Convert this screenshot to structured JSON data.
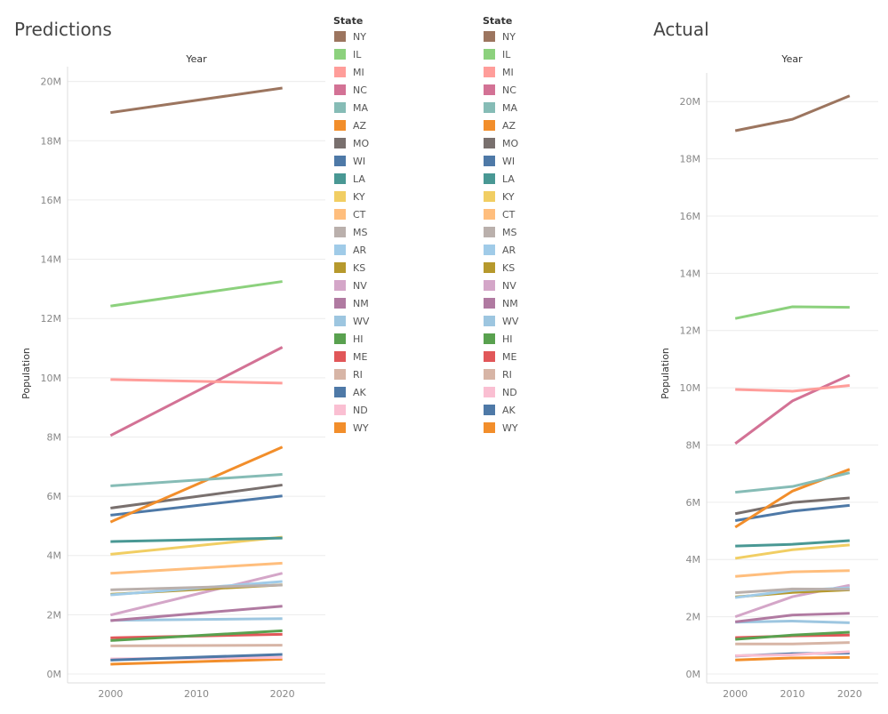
{
  "chart_data": [
    {
      "type": "line",
      "title": "Predictions",
      "column_header": "Year",
      "ylabel": "Population",
      "x": [
        2000,
        2020
      ],
      "xticks": [
        "2000",
        "2010",
        "2020"
      ],
      "yticks": [
        "0M",
        "2M",
        "4M",
        "6M",
        "8M",
        "10M",
        "12M",
        "14M",
        "16M",
        "18M",
        "20M"
      ],
      "xlim": [
        1995,
        2025
      ],
      "ylim": [
        0,
        20500000
      ],
      "grid": true,
      "series": [
        {
          "name": "NY",
          "color": "#9c755f",
          "values": [
            18950000,
            19780000
          ]
        },
        {
          "name": "IL",
          "color": "#8cd17d",
          "values": [
            12420000,
            13250000
          ]
        },
        {
          "name": "MI",
          "color": "#ff9d9a",
          "values": [
            9940000,
            9820000
          ]
        },
        {
          "name": "NC",
          "color": "#d37295",
          "values": [
            8050000,
            11030000
          ]
        },
        {
          "name": "MA",
          "color": "#86bcb6",
          "values": [
            6350000,
            6740000
          ]
        },
        {
          "name": "AZ",
          "color": "#f28e2b",
          "values": [
            5130000,
            7660000
          ]
        },
        {
          "name": "MO",
          "color": "#79706e",
          "values": [
            5600000,
            6380000
          ]
        },
        {
          "name": "WI",
          "color": "#4e79a7",
          "values": [
            5360000,
            6010000
          ]
        },
        {
          "name": "LA",
          "color": "#499894",
          "values": [
            4470000,
            4590000
          ]
        },
        {
          "name": "KY",
          "color": "#f1ce63",
          "values": [
            4040000,
            4620000
          ]
        },
        {
          "name": "CT",
          "color": "#ffbe7d",
          "values": [
            3400000,
            3740000
          ]
        },
        {
          "name": "MS",
          "color": "#bab0ac",
          "values": [
            2840000,
            3000000
          ]
        },
        {
          "name": "AR",
          "color": "#a0cbe8",
          "values": [
            2670000,
            3120000
          ]
        },
        {
          "name": "KS",
          "color": "#b6992d",
          "values": [
            2690000,
            3010000
          ]
        },
        {
          "name": "NV",
          "color": "#d4a6c8",
          "values": [
            1990000,
            3400000
          ]
        },
        {
          "name": "NM",
          "color": "#b07aa1",
          "values": [
            1800000,
            2290000
          ]
        },
        {
          "name": "WV",
          "color": "#9dc6e0",
          "values": [
            1810000,
            1870000
          ]
        },
        {
          "name": "HI",
          "color": "#59a14f",
          "values": [
            1130000,
            1460000
          ]
        },
        {
          "name": "ME",
          "color": "#e15759",
          "values": [
            1220000,
            1340000
          ]
        },
        {
          "name": "RI",
          "color": "#d7b5a6",
          "values": [
            950000,
            970000
          ]
        },
        {
          "name": "AK",
          "color": "#4e79a7",
          "values": [
            470000,
            660000
          ]
        },
        {
          "name": "ND",
          "color": "#fabfd2",
          "values": [
            510000,
            560000
          ]
        },
        {
          "name": "WY",
          "color": "#f28e2b",
          "values": [
            330000,
            500000
          ]
        }
      ],
      "legend": {
        "title": "State",
        "items": [
          {
            "label": "NY",
            "color": "#9c755f"
          },
          {
            "label": "IL",
            "color": "#8cd17d"
          },
          {
            "label": "MI",
            "color": "#ff9d9a"
          },
          {
            "label": "NC",
            "color": "#d37295"
          },
          {
            "label": "MA",
            "color": "#86bcb6"
          },
          {
            "label": "AZ",
            "color": "#f28e2b"
          },
          {
            "label": "MO",
            "color": "#79706e"
          },
          {
            "label": "WI",
            "color": "#4e79a7"
          },
          {
            "label": "LA",
            "color": "#499894"
          },
          {
            "label": "KY",
            "color": "#f1ce63"
          },
          {
            "label": "CT",
            "color": "#ffbe7d"
          },
          {
            "label": "MS",
            "color": "#bab0ac"
          },
          {
            "label": "AR",
            "color": "#a0cbe8"
          },
          {
            "label": "KS",
            "color": "#b6992d"
          },
          {
            "label": "NV",
            "color": "#d4a6c8"
          },
          {
            "label": "NM",
            "color": "#b07aa1"
          },
          {
            "label": "WV",
            "color": "#9dc6e0"
          },
          {
            "label": "HI",
            "color": "#59a14f"
          },
          {
            "label": "ME",
            "color": "#e15759"
          },
          {
            "label": "RI",
            "color": "#d7b5a6"
          },
          {
            "label": "AK",
            "color": "#4e79a7"
          },
          {
            "label": "ND",
            "color": "#fabfd2"
          },
          {
            "label": "WY",
            "color": "#f28e2b"
          }
        ]
      }
    },
    {
      "type": "line",
      "title": "Actual",
      "column_header": "Year",
      "ylabel": "Population",
      "x": [
        2000,
        2010,
        2020
      ],
      "xticks": [
        "2000",
        "2010",
        "2020"
      ],
      "yticks": [
        "0M",
        "2M",
        "4M",
        "6M",
        "8M",
        "10M",
        "12M",
        "14M",
        "16M",
        "18M",
        "20M"
      ],
      "xlim": [
        1995,
        2025
      ],
      "ylim": [
        0,
        21000000
      ],
      "grid": true,
      "series": [
        {
          "name": "NY",
          "color": "#9c755f",
          "values": [
            18980000,
            19380000,
            20200000
          ]
        },
        {
          "name": "IL",
          "color": "#8cd17d",
          "values": [
            12420000,
            12830000,
            12810000
          ]
        },
        {
          "name": "MI",
          "color": "#ff9d9a",
          "values": [
            9940000,
            9880000,
            10080000
          ]
        },
        {
          "name": "NC",
          "color": "#d37295",
          "values": [
            8050000,
            9540000,
            10440000
          ]
        },
        {
          "name": "MA",
          "color": "#86bcb6",
          "values": [
            6350000,
            6550000,
            7030000
          ]
        },
        {
          "name": "AZ",
          "color": "#f28e2b",
          "values": [
            5130000,
            6390000,
            7150000
          ]
        },
        {
          "name": "MO",
          "color": "#79706e",
          "values": [
            5600000,
            5990000,
            6150000
          ]
        },
        {
          "name": "WI",
          "color": "#4e79a7",
          "values": [
            5360000,
            5690000,
            5890000
          ]
        },
        {
          "name": "LA",
          "color": "#499894",
          "values": [
            4470000,
            4530000,
            4660000
          ]
        },
        {
          "name": "KY",
          "color": "#f1ce63",
          "values": [
            4040000,
            4340000,
            4510000
          ]
        },
        {
          "name": "CT",
          "color": "#ffbe7d",
          "values": [
            3410000,
            3570000,
            3610000
          ]
        },
        {
          "name": "MS",
          "color": "#bab0ac",
          "values": [
            2840000,
            2970000,
            2960000
          ]
        },
        {
          "name": "AR",
          "color": "#a0cbe8",
          "values": [
            2670000,
            2920000,
            3010000
          ]
        },
        {
          "name": "KS",
          "color": "#b6992d",
          "values": [
            2690000,
            2850000,
            2940000
          ]
        },
        {
          "name": "NV",
          "color": "#d4a6c8",
          "values": [
            2000000,
            2700000,
            3100000
          ]
        },
        {
          "name": "NM",
          "color": "#b07aa1",
          "values": [
            1820000,
            2060000,
            2120000
          ]
        },
        {
          "name": "WV",
          "color": "#9dc6e0",
          "values": [
            1810000,
            1850000,
            1790000
          ]
        },
        {
          "name": "HI",
          "color": "#59a14f",
          "values": [
            1210000,
            1360000,
            1460000
          ]
        },
        {
          "name": "ME",
          "color": "#e15759",
          "values": [
            1270000,
            1330000,
            1360000
          ]
        },
        {
          "name": "RI",
          "color": "#d7b5a6",
          "values": [
            1050000,
            1050000,
            1100000
          ]
        },
        {
          "name": "ND",
          "color": "#fabfd2",
          "values": [
            640000,
            670000,
            780000
          ]
        },
        {
          "name": "AK",
          "color": "#4e79a7",
          "values": [
            630000,
            710000,
            730000
          ]
        },
        {
          "name": "WY",
          "color": "#f28e2b",
          "values": [
            490000,
            560000,
            580000
          ]
        }
      ],
      "legend": {
        "title": "State",
        "items": [
          {
            "label": "NY",
            "color": "#9c755f"
          },
          {
            "label": "IL",
            "color": "#8cd17d"
          },
          {
            "label": "MI",
            "color": "#ff9d9a"
          },
          {
            "label": "NC",
            "color": "#d37295"
          },
          {
            "label": "MA",
            "color": "#86bcb6"
          },
          {
            "label": "AZ",
            "color": "#f28e2b"
          },
          {
            "label": "MO",
            "color": "#79706e"
          },
          {
            "label": "WI",
            "color": "#4e79a7"
          },
          {
            "label": "LA",
            "color": "#499894"
          },
          {
            "label": "KY",
            "color": "#f1ce63"
          },
          {
            "label": "CT",
            "color": "#ffbe7d"
          },
          {
            "label": "MS",
            "color": "#bab0ac"
          },
          {
            "label": "AR",
            "color": "#a0cbe8"
          },
          {
            "label": "KS",
            "color": "#b6992d"
          },
          {
            "label": "NV",
            "color": "#d4a6c8"
          },
          {
            "label": "NM",
            "color": "#b07aa1"
          },
          {
            "label": "WV",
            "color": "#9dc6e0"
          },
          {
            "label": "HI",
            "color": "#59a14f"
          },
          {
            "label": "ME",
            "color": "#e15759"
          },
          {
            "label": "RI",
            "color": "#d7b5a6"
          },
          {
            "label": "ND",
            "color": "#fabfd2"
          },
          {
            "label": "AK",
            "color": "#4e79a7"
          },
          {
            "label": "WY",
            "color": "#f28e2b"
          }
        ]
      }
    }
  ]
}
